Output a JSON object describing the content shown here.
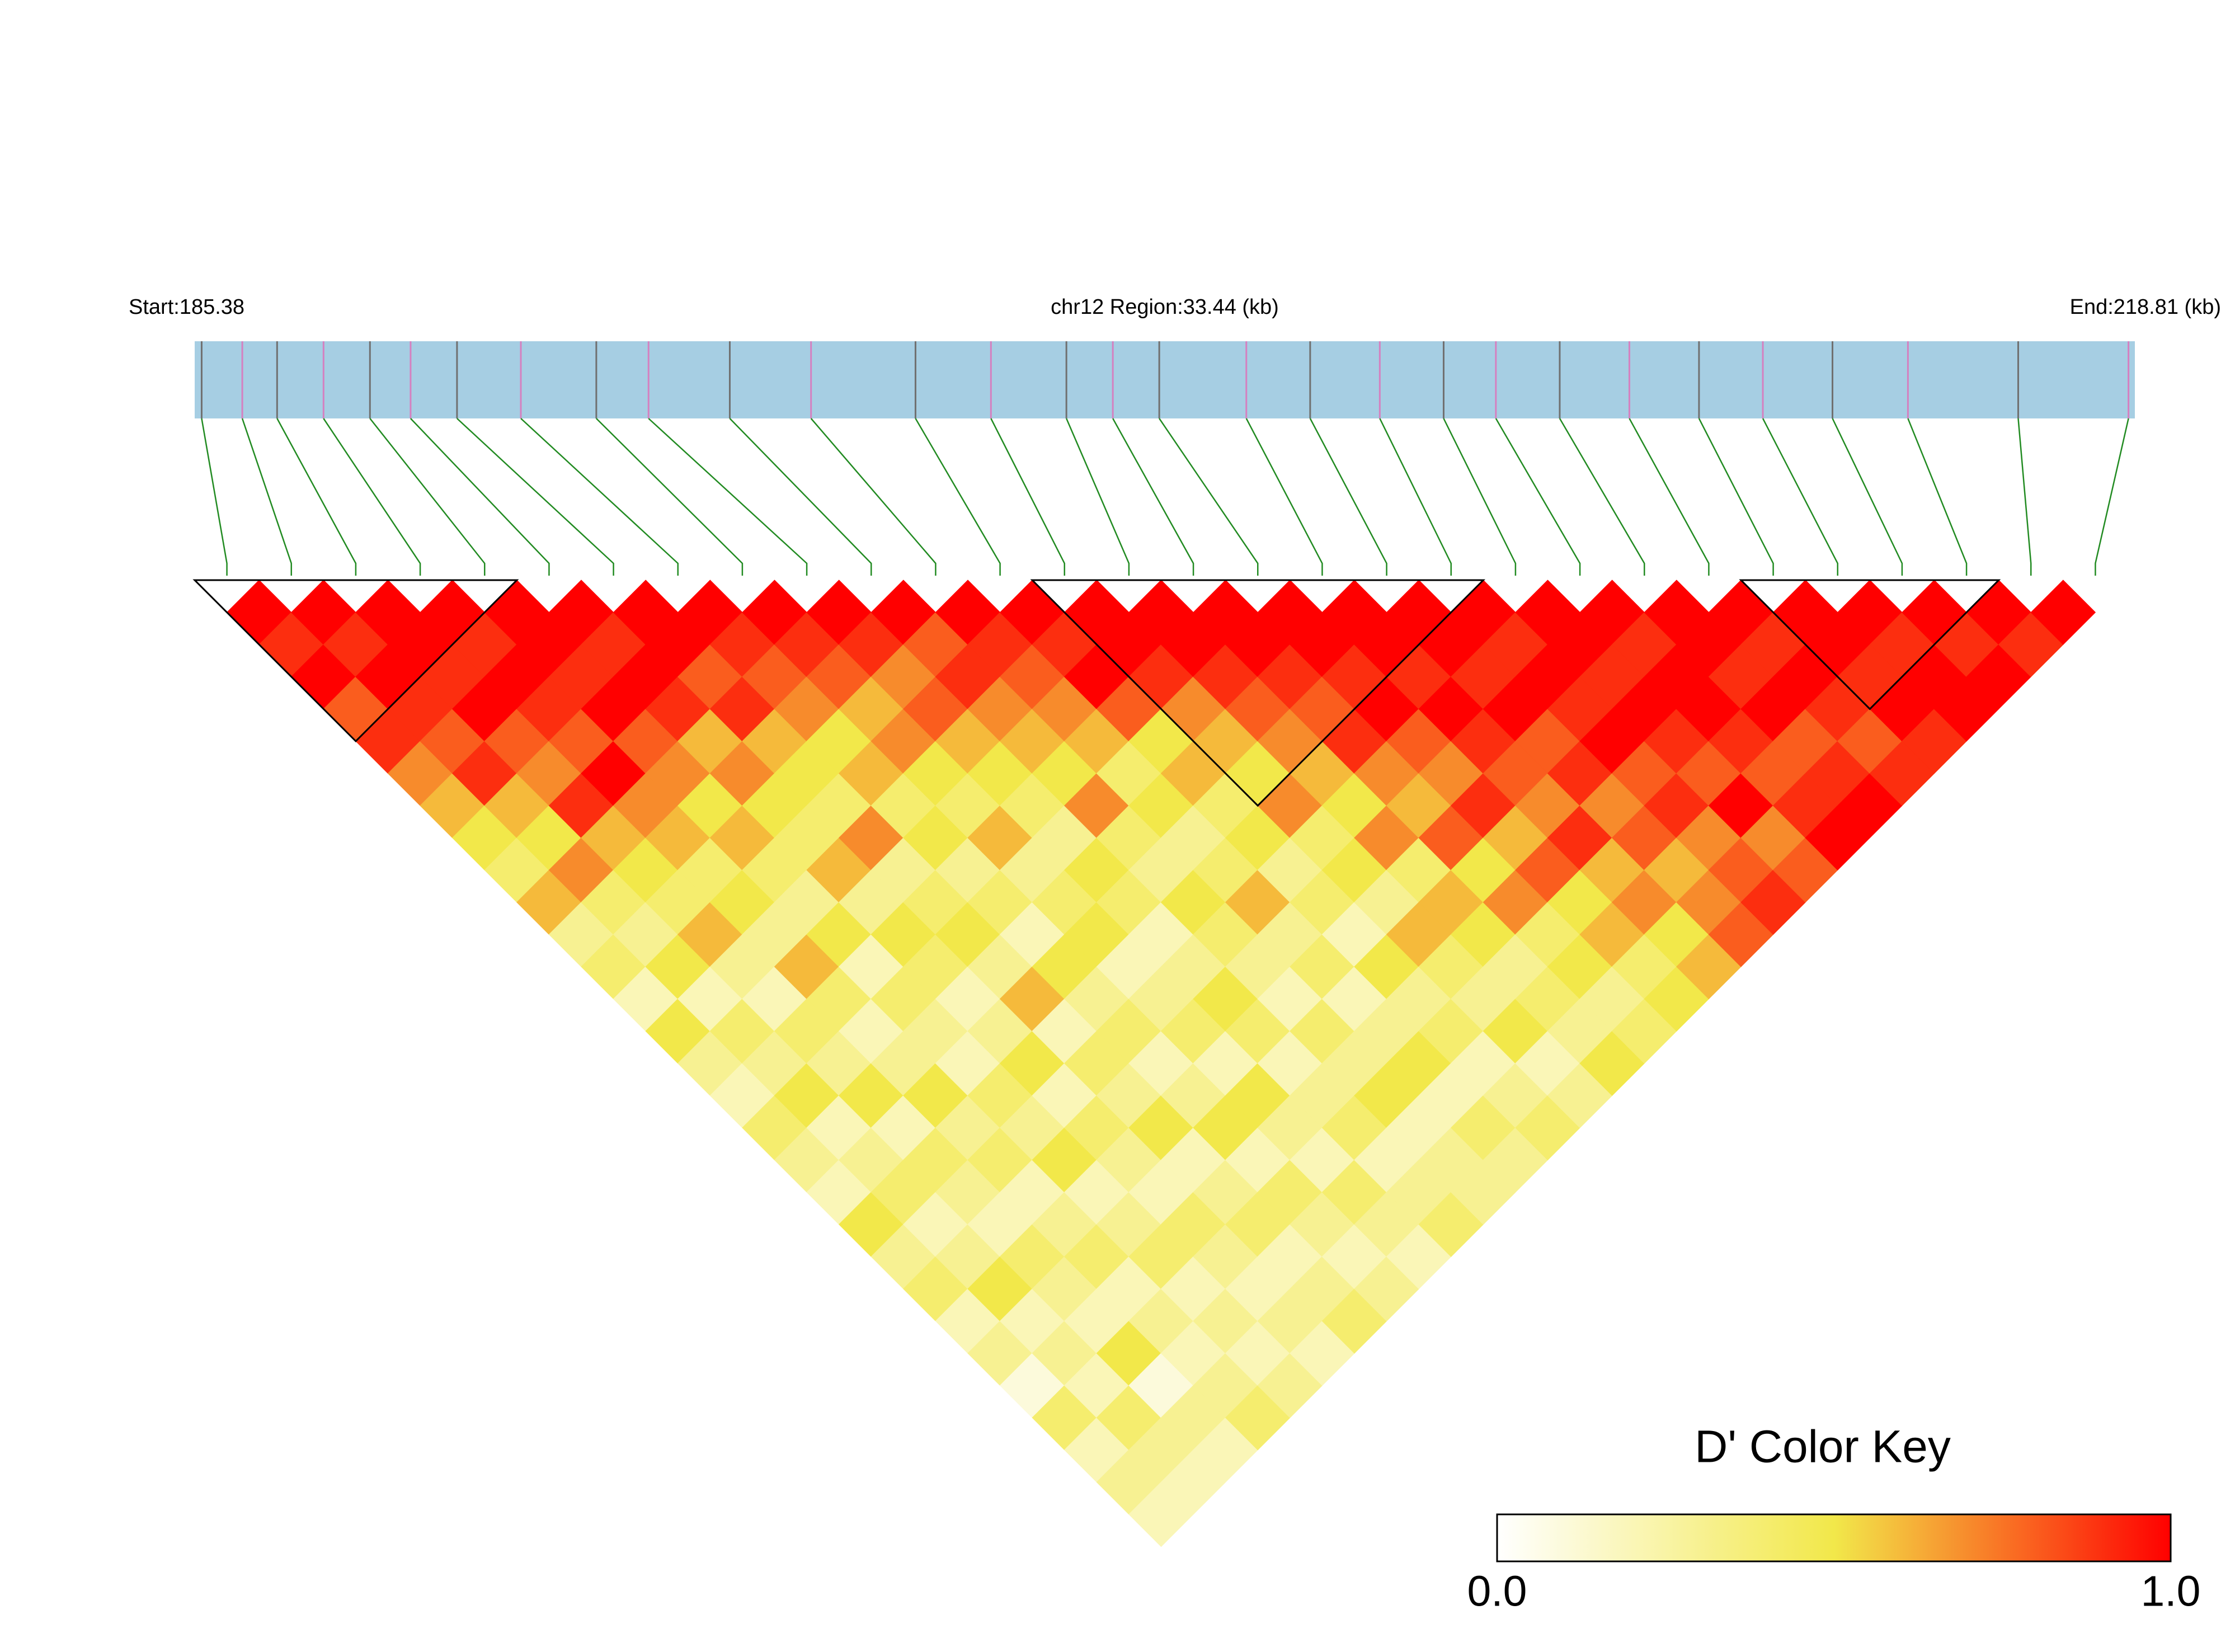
{
  "chart_data": {
    "type": "ld_heatmap",
    "region_label": "chr12 Region:33.44 (kb)",
    "start_label": "Start:185.38",
    "end_label": "End:218.81 (kb)",
    "xlim": [
      185.38,
      218.81
    ],
    "bar_color": "#a6cee3",
    "link_color": "#228b22",
    "block_color": "#000000",
    "snp_positions": [
      185.5,
      186.2,
      186.8,
      187.6,
      188.4,
      189.1,
      189.9,
      191.0,
      192.3,
      193.2,
      194.6,
      196.0,
      197.8,
      199.1,
      200.4,
      201.2,
      202.0,
      203.5,
      204.6,
      205.8,
      206.9,
      207.8,
      208.9,
      210.1,
      211.3,
      212.4,
      213.6,
      214.9,
      216.8,
      218.7
    ],
    "dprime": [
      [
        1,
        0.9,
        1,
        0.8,
        0.9,
        0.7,
        0.6,
        0.5,
        0.4,
        0.6,
        0.3,
        0.4,
        0.2,
        0.5,
        0.3,
        0.2,
        0.4,
        0.3,
        0.2,
        0.5,
        0.3,
        0.4,
        0.2,
        0.3,
        0.1,
        0.4,
        0.2,
        0.3,
        0.2
      ],
      [
        1,
        0.9,
        1,
        0.9,
        0.8,
        0.9,
        0.6,
        0.5,
        0.7,
        0.4,
        0.3,
        0.5,
        0.2,
        0.4,
        0.3,
        0.5,
        0.2,
        0.3,
        0.4,
        0.2,
        0.3,
        0.5,
        0.2,
        0.3,
        0.2,
        0.4,
        0.3,
        0.2
      ],
      [
        1,
        1,
        0.9,
        1,
        0.8,
        0.7,
        0.9,
        0.6,
        0.5,
        0.4,
        0.6,
        0.3,
        0.2,
        0.4,
        0.3,
        0.5,
        0.2,
        0.4,
        0.3,
        0.2,
        0.4,
        0.3,
        0.2,
        0.5,
        0.1,
        0.3,
        0.2
      ],
      [
        1,
        0.9,
        1,
        0.9,
        0.8,
        1,
        0.7,
        0.6,
        0.4,
        0.5,
        0.3,
        0.6,
        0.4,
        0.2,
        0.3,
        0.5,
        0.3,
        0.4,
        0.2,
        0.3,
        0.4,
        0.2,
        0.3,
        0.2,
        0.3,
        0.4
      ],
      [
        1,
        1,
        0.9,
        1,
        0.8,
        0.7,
        0.5,
        0.6,
        0.4,
        0.3,
        0.5,
        0.2,
        0.4,
        0.3,
        0.2,
        0.4,
        0.3,
        0.5,
        0.2,
        0.3,
        0.4,
        0.2,
        0.3,
        0.2,
        0.3
      ],
      [
        1,
        0.9,
        1,
        0.9,
        0.6,
        0.7,
        0.5,
        0.4,
        0.6,
        0.3,
        0.5,
        0.4,
        0.2,
        0.3,
        0.5,
        0.2,
        0.4,
        0.3,
        0.2,
        0.4,
        0.3,
        0.2,
        0.3,
        0.2
      ],
      [
        1,
        1,
        0.8,
        0.9,
        0.6,
        0.5,
        0.4,
        0.7,
        0.3,
        0.4,
        0.5,
        0.3,
        0.6,
        0.2,
        0.4,
        0.3,
        0.5,
        0.2,
        0.3,
        0.4,
        0.2,
        0.3,
        0.4
      ],
      [
        1,
        0.9,
        0.8,
        0.7,
        0.5,
        0.6,
        0.4,
        0.5,
        0.3,
        0.4,
        0.2,
        0.5,
        0.3,
        0.4,
        0.2,
        0.3,
        0.5,
        0.2,
        0.4,
        0.3,
        0.2,
        0.3
      ],
      [
        1,
        0.9,
        0.8,
        0.6,
        0.7,
        0.5,
        0.4,
        0.6,
        0.3,
        0.4,
        0.5,
        0.2,
        0.3,
        0.4,
        0.2,
        0.5,
        0.3,
        0.2,
        0.4,
        0.3,
        0.2
      ],
      [
        1,
        0.9,
        0.7,
        0.8,
        0.6,
        0.5,
        0.4,
        0.3,
        0.5,
        0.4,
        0.2,
        0.3,
        0.5,
        0.4,
        0.2,
        0.3,
        0.4,
        0.2,
        0.3,
        0.4
      ],
      [
        1,
        0.8,
        0.9,
        0.7,
        0.6,
        0.5,
        0.7,
        0.4,
        0.3,
        0.5,
        0.4,
        0.3,
        0.2,
        0.4,
        0.3,
        0.5,
        0.2,
        0.3,
        0.3
      ],
      [
        1,
        0.9,
        0.8,
        0.7,
        0.6,
        0.4,
        0.5,
        0.3,
        0.4,
        0.6,
        0.3,
        0.4,
        0.2,
        0.3,
        0.5,
        0.2,
        0.4,
        0.3
      ],
      [
        1,
        0.9,
        1,
        0.8,
        0.5,
        0.6,
        0.4,
        0.5,
        0.3,
        0.4,
        0.2,
        0.5,
        0.3,
        0.4,
        0.2,
        0.3,
        0.4
      ],
      [
        1,
        1,
        0.9,
        0.7,
        0.6,
        0.5,
        0.7,
        0.4,
        0.5,
        0.3,
        0.6,
        0.4,
        0.3,
        0.5,
        0.2,
        0.3
      ],
      [
        1,
        1,
        0.9,
        0.8,
        0.7,
        0.6,
        0.5,
        0.7,
        0.4,
        0.6,
        0.5,
        0.3,
        0.4,
        0.3,
        0.5
      ],
      [
        1,
        1,
        0.9,
        0.8,
        0.9,
        0.7,
        0.6,
        0.8,
        0.5,
        0.7,
        0.4,
        0.5,
        0.3,
        0.4
      ],
      [
        1,
        1,
        0.9,
        1,
        0.8,
        0.7,
        0.9,
        0.6,
        0.8,
        0.5,
        0.6,
        0.4,
        0.5
      ],
      [
        1,
        1,
        0.9,
        1,
        0.9,
        0.8,
        0.7,
        0.9,
        0.6,
        0.7,
        0.5,
        0.6
      ],
      [
        1,
        1,
        0.9,
        1,
        0.8,
        0.9,
        0.7,
        0.8,
        0.6,
        0.7,
        0.8
      ],
      [
        1,
        0.9,
        1,
        0.9,
        1,
        0.8,
        0.9,
        0.7,
        0.8,
        0.9
      ],
      [
        1,
        1,
        0.9,
        1,
        0.9,
        0.8,
        1,
        0.7,
        0.8
      ],
      [
        1,
        0.9,
        1,
        1,
        0.9,
        0.8,
        0.9,
        1
      ],
      [
        1,
        1,
        0.9,
        1,
        0.8,
        0.9,
        1
      ],
      [
        1,
        0.9,
        1,
        0.9,
        0.8,
        0.9
      ],
      [
        1,
        1,
        0.9,
        1,
        0.9
      ],
      [
        1,
        0.9,
        1,
        1
      ],
      [
        1,
        0.9,
        1
      ],
      [
        1,
        0.9
      ],
      [
        1
      ]
    ],
    "blocks": [
      [
        0,
        4
      ],
      [
        13,
        19
      ],
      [
        24,
        27
      ]
    ],
    "key_title": "D' Color Key",
    "colors": [
      "#ffffff",
      "#f2e84a",
      "#ff0000"
    ],
    "clim": [
      0,
      1
    ],
    "cticks": [
      {
        "value": 0,
        "label": "0.0"
      },
      {
        "value": 1,
        "label": "1.0"
      }
    ]
  }
}
